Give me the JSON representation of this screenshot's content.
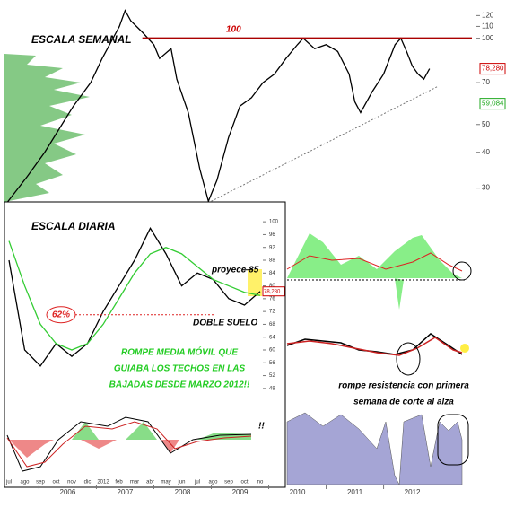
{
  "chart_data": [
    {
      "type": "line",
      "title": "ESCALA SEMANAL",
      "color": "#000000",
      "log_scale": true,
      "x": [
        2005.4,
        2005.8,
        2006.1,
        2006.4,
        2006.6,
        2006.9,
        2007.1,
        2007.4,
        2007.5,
        2007.6,
        2007.8,
        2008.0,
        2008.1,
        2008.3,
        2008.4,
        2008.6,
        2008.8,
        2008.95,
        2009.1,
        2009.3,
        2009.5,
        2009.7,
        2009.9,
        2010.1,
        2010.3,
        2010.5,
        2010.6,
        2010.8,
        2011.0,
        2011.2,
        2011.4,
        2011.5,
        2011.6,
        2011.8,
        2012.0,
        2012.2,
        2012.3,
        2012.4,
        2012.5,
        2012.6,
        2012.7,
        2012.8
      ],
      "values": [
        26,
        33,
        40,
        50,
        58,
        70,
        85,
        110,
        125,
        115,
        105,
        95,
        85,
        92,
        72,
        55,
        35,
        27,
        32,
        45,
        58,
        62,
        70,
        75,
        85,
        95,
        100,
        92,
        95,
        90,
        75,
        60,
        55,
        65,
        75,
        95,
        100,
        90,
        80,
        75,
        72,
        78.28
      ],
      "xlim": [
        2005.4,
        2013.6
      ],
      "ylim": [
        25.9,
        136
      ],
      "xticks": [
        {
          "value": 2006.5,
          "label": "2006"
        },
        {
          "value": 2007.5,
          "label": "2007"
        },
        {
          "value": 2008.5,
          "label": "2008"
        },
        {
          "value": 2009.5,
          "label": "2009"
        },
        {
          "value": 2010.5,
          "label": "2010"
        },
        {
          "value": 2011.5,
          "label": "2011"
        },
        {
          "value": 2012.5,
          "label": "2012"
        }
      ],
      "yticks": [
        30,
        40,
        50,
        70,
        100,
        110,
        120
      ],
      "resistance": {
        "value": 100,
        "label": "100"
      },
      "trendline": {
        "x": [
          2009.0,
          2012.95
        ],
        "values": [
          27,
          68
        ]
      },
      "last_label": {
        "value": 78.28,
        "label": "78,280"
      },
      "low_label": {
        "value": 59.084,
        "label": "59,084"
      },
      "comment": [
        "rompe resistencia con primera",
        "semana de corte al alza"
      ]
    },
    {
      "type": "line",
      "title": "ESCALA DIARIA",
      "categories": [
        "jul",
        "ago",
        "sep",
        "oct",
        "nov",
        "dic",
        "2012",
        "feb",
        "mar",
        "abr",
        "may",
        "jun",
        "jul",
        "ago",
        "sep",
        "oct",
        "no"
      ],
      "series": [
        {
          "color": "#000000",
          "values": [
            88,
            60,
            55,
            62,
            58,
            62,
            72,
            80,
            88,
            98,
            90,
            80,
            84,
            82,
            76,
            74,
            78.28
          ]
        },
        {
          "color": "#33cc33",
          "values": [
            94,
            80,
            68,
            62,
            60,
            62,
            68,
            76,
            84,
            90,
            92,
            90,
            86,
            82,
            80,
            78,
            77
          ]
        }
      ],
      "ylim": [
        46,
        102
      ],
      "yticks": [
        48,
        52,
        56,
        60,
        64,
        68,
        72,
        76,
        80,
        84,
        88,
        92,
        96,
        100
      ],
      "retracement": {
        "value": 71,
        "label": "62%"
      },
      "projection": {
        "value": 85,
        "label": "proyecc 85"
      },
      "last_label": {
        "value": 78.28,
        "label": "78,280"
      },
      "pattern": "DOBLE SUELO",
      "note": [
        "ROMPE MEDIA MÓVIL QUE",
        "GUIABA LOS TECHOS EN LAS",
        "BAJADAS DESDE MARZO 2012!!"
      ],
      "oscillator_note": "!!"
    }
  ]
}
